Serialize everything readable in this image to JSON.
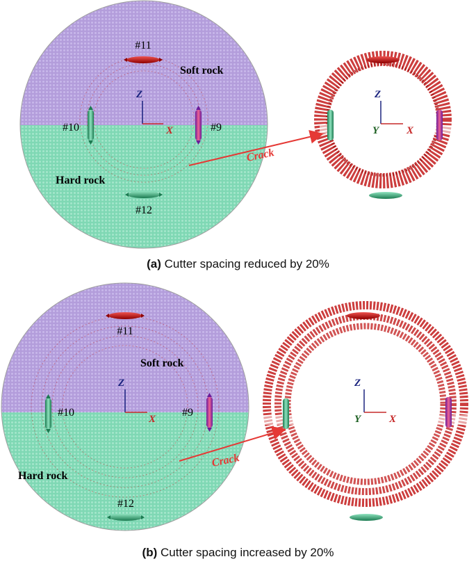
{
  "panels": [
    {
      "id": "a",
      "caption_tag": "(a)",
      "caption_text": "Cutter spacing reduced by 20%",
      "labels": {
        "soft_rock": "Soft rock",
        "hard_rock": "Hard rock",
        "crack": "Crack",
        "cutters": [
          "#11",
          "#10",
          "#9",
          "#12"
        ]
      },
      "axes": {
        "z": "Z",
        "x": "X",
        "y": "Y"
      }
    },
    {
      "id": "b",
      "caption_tag": "(b)",
      "caption_text": "Cutter spacing increased by 20%",
      "labels": {
        "soft_rock": "Soft rock",
        "hard_rock": "Hard rock",
        "crack": "Crack",
        "cutters": [
          "#11",
          "#10",
          "#9",
          "#12"
        ]
      },
      "axes": {
        "z": "Z",
        "x": "X",
        "y": "Y"
      }
    }
  ],
  "colors": {
    "soft_rock": "#b39ddb",
    "hard_rock": "#7fd8b4",
    "crack": "#c62828",
    "cutter_red": "#d32f2f",
    "cutter_green": "#2e9e6e",
    "cutter_magenta": "#c2185b",
    "axis_z": "#1a237e",
    "axis_x": "#c62828",
    "axis_y": "#1b5e20"
  }
}
